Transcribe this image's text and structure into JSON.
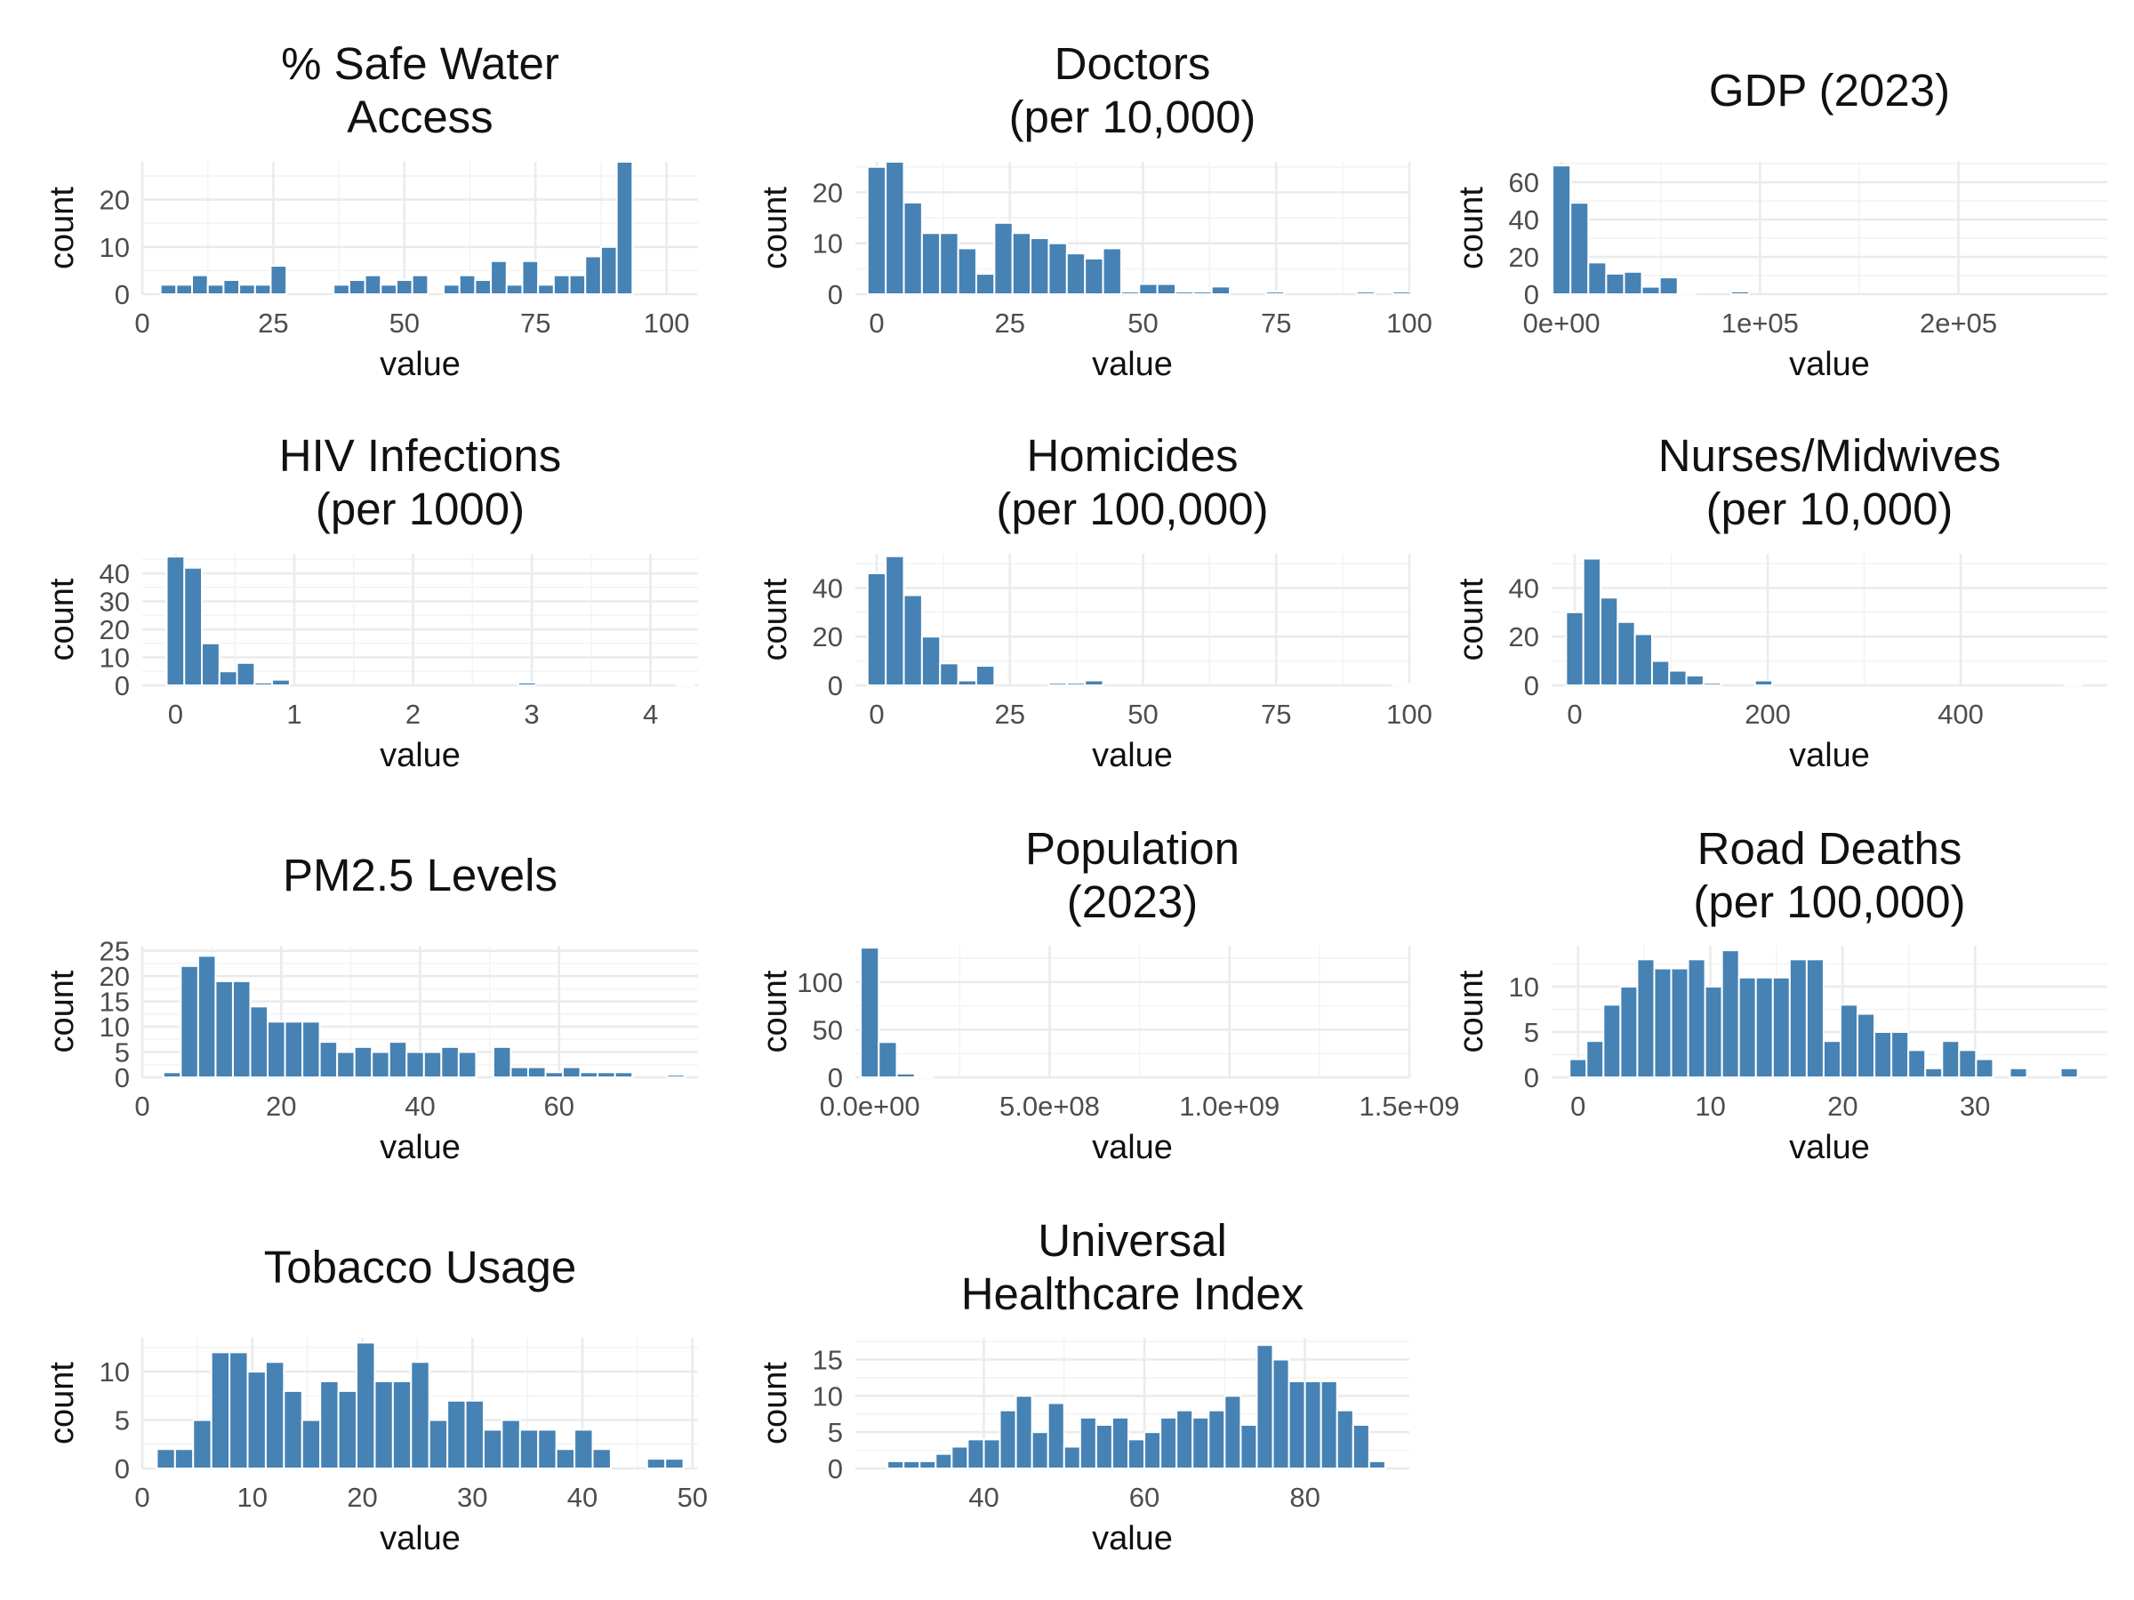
{
  "style": {
    "bar_color": "#4682b4",
    "grid_color": "#ebebeb",
    "background": "#ffffff"
  },
  "chart_data": [
    {
      "type": "bar",
      "title": "% Safe Water\nAccess",
      "xlabel": "value",
      "ylabel": "count",
      "x": [
        2,
        5,
        8,
        11,
        14,
        17,
        20,
        23,
        26,
        29,
        32,
        35,
        38,
        41,
        44,
        47,
        50,
        53,
        56,
        59,
        62,
        65,
        68,
        71,
        74,
        77,
        80,
        83,
        86,
        89,
        92,
        95,
        98,
        101
      ],
      "values": [
        0,
        2,
        2,
        4,
        2,
        3,
        2,
        2,
        6,
        0,
        0,
        0,
        2,
        3,
        4,
        2,
        3,
        4,
        0,
        2,
        4,
        3,
        7,
        2,
        7,
        2,
        4,
        4,
        8,
        10,
        28,
        0,
        0,
        0
      ],
      "xlim": [
        0,
        106
      ],
      "xticks": [
        0,
        25,
        50,
        75,
        100
      ],
      "xtick_labels": [
        "0",
        "25",
        "50",
        "75",
        "100"
      ],
      "ylim": [
        0,
        28
      ],
      "yticks": [
        0,
        10,
        20
      ],
      "ytick_labels": [
        "0",
        "10",
        "20"
      ]
    },
    {
      "type": "bar",
      "title": "Doctors\n(per 10,000)",
      "xlabel": "value",
      "ylabel": "count",
      "x": [
        0,
        3.4,
        6.8,
        10.2,
        13.6,
        17,
        20.4,
        23.8,
        27.2,
        30.6,
        34,
        37.4,
        40.8,
        44.2,
        47.6,
        51,
        54.4,
        57.8,
        61.2,
        64.6,
        68,
        71.4,
        74.8,
        78.2,
        81.6,
        85,
        88.4,
        91.8,
        95.2,
        98.6
      ],
      "values": [
        25,
        26,
        18,
        12,
        12,
        9,
        4,
        14,
        12,
        11,
        10,
        8,
        7,
        9,
        0.5,
        2,
        2,
        0.5,
        0.5,
        1.5,
        0,
        0,
        0.5,
        0,
        0,
        0,
        0,
        0.5,
        0,
        0.5
      ],
      "xlim": [
        -4,
        100
      ],
      "xticks": [
        0,
        25,
        50,
        75,
        100
      ],
      "xtick_labels": [
        "0",
        "25",
        "50",
        "75",
        "100"
      ],
      "ylim": [
        0,
        26
      ],
      "yticks": [
        0,
        10,
        20
      ],
      "ytick_labels": [
        "0",
        "10",
        "20"
      ]
    },
    {
      "type": "bar",
      "title": "GDP (2023)",
      "xlabel": "value",
      "ylabel": "count",
      "x": [
        0,
        9000,
        18000,
        27000,
        36000,
        45000,
        54000,
        63000,
        72000,
        81000,
        90000,
        99000,
        108000,
        117000,
        126000
      ],
      "values": [
        69,
        49,
        17,
        11,
        12,
        4,
        9,
        0.5,
        0,
        0,
        1.5,
        0,
        0,
        0,
        0
      ],
      "xlim": [
        -5000,
        275000
      ],
      "xticks": [
        0,
        100000,
        200000
      ],
      "xtick_labels": [
        "0e+00",
        "1e+05",
        "2e+05"
      ],
      "ylim": [
        0,
        71
      ],
      "yticks": [
        0,
        20,
        40,
        60
      ],
      "ytick_labels": [
        "0",
        "20",
        "40",
        "60"
      ]
    },
    {
      "type": "bar",
      "title": "HIV Infections\n(per 1000)",
      "xlabel": "value",
      "ylabel": "count",
      "x": [
        0,
        0.148,
        0.296,
        0.444,
        0.592,
        0.74,
        0.888,
        1.036,
        1.184,
        1.332,
        1.48,
        1.628,
        1.776,
        1.924,
        2.072,
        2.22,
        2.368,
        2.516,
        2.664,
        2.812,
        2.96,
        3.108,
        3.256,
        3.404,
        3.552,
        3.7,
        3.848,
        3.996,
        4.144,
        4.292
      ],
      "values": [
        46,
        42,
        15,
        5,
        8,
        1,
        2,
        0,
        0,
        0,
        0,
        0,
        0,
        0,
        0,
        0,
        0,
        0,
        0,
        0,
        1,
        0,
        0,
        0,
        0,
        0,
        0,
        0,
        0,
        0.5
      ],
      "xlim": [
        -0.28,
        4.4
      ],
      "xticks": [
        0,
        1,
        2,
        3,
        4
      ],
      "xtick_labels": [
        "0",
        "1",
        "2",
        "3",
        "4"
      ],
      "ylim": [
        0,
        47
      ],
      "yticks": [
        0,
        10,
        20,
        30,
        40
      ],
      "ytick_labels": [
        "0",
        "10",
        "20",
        "30",
        "40"
      ]
    },
    {
      "type": "bar",
      "title": "Homicides\n(per 100,000)",
      "xlabel": "value",
      "ylabel": "count",
      "x": [
        0,
        3.4,
        6.8,
        10.2,
        13.6,
        17,
        20.4,
        23.8,
        27.2,
        30.6,
        34,
        37.4,
        40.8,
        44.2,
        47.6,
        51,
        54.4,
        57.8,
        61.2,
        64.6,
        68,
        71.4,
        74.8,
        78.2,
        81.6,
        85,
        88.4,
        91.8,
        95.2,
        98.6
      ],
      "values": [
        46,
        53,
        37,
        20,
        9,
        2,
        8,
        0,
        0,
        0,
        1,
        1,
        2,
        0,
        0,
        0,
        0,
        0,
        0,
        0,
        0,
        0,
        0,
        0,
        0,
        0,
        0,
        0,
        0,
        0.5
      ],
      "xlim": [
        -4,
        100
      ],
      "xticks": [
        0,
        25,
        50,
        75,
        100
      ],
      "xtick_labels": [
        "0",
        "25",
        "50",
        "75",
        "100"
      ],
      "ylim": [
        0,
        54
      ],
      "yticks": [
        0,
        20,
        40
      ],
      "ytick_labels": [
        "0",
        "20",
        "40"
      ]
    },
    {
      "type": "bar",
      "title": "Nurses/Midwives\n(per 10,000)",
      "xlabel": "value",
      "ylabel": "count",
      "x": [
        0,
        17.8,
        35.6,
        53.4,
        71.2,
        89,
        106.8,
        124.6,
        142.4,
        160.2,
        178,
        195.8,
        213.6,
        231.4,
        249.2,
        267,
        284.8,
        302.6,
        320.4,
        338.2,
        356,
        373.8,
        391.6,
        409.4,
        427.2,
        445,
        462.8,
        480.6,
        498.4,
        516.2
      ],
      "values": [
        30,
        52,
        36,
        26,
        21,
        10,
        6,
        4,
        1,
        0,
        0,
        2,
        0,
        0,
        0,
        0,
        0,
        0,
        0,
        0,
        0,
        0,
        0,
        0,
        0,
        0,
        0,
        0,
        0,
        0.5
      ],
      "xlim": [
        -24,
        552
      ],
      "xticks": [
        0,
        200,
        400
      ],
      "xtick_labels": [
        "0",
        "200",
        "400"
      ],
      "ylim": [
        0,
        54
      ],
      "yticks": [
        0,
        20,
        40
      ],
      "ytick_labels": [
        "0",
        "20",
        "40"
      ]
    },
    {
      "type": "bar",
      "title": "PM2.5 Levels",
      "xlabel": "value",
      "ylabel": "count",
      "x": [
        4.3,
        6.8,
        9.3,
        11.8,
        14.3,
        16.8,
        19.3,
        21.8,
        24.3,
        26.8,
        29.3,
        31.8,
        34.3,
        36.8,
        39.3,
        41.8,
        44.3,
        46.8,
        49.3,
        51.8,
        54.3,
        56.8,
        59.3,
        61.8,
        64.3,
        66.8,
        69.3,
        71.8,
        74.3,
        76.8
      ],
      "values": [
        1,
        22,
        24,
        19,
        19,
        14,
        11,
        11,
        11,
        7,
        5,
        6,
        5,
        7,
        5,
        5,
        6,
        5,
        0,
        6,
        2,
        2,
        1,
        2,
        1,
        1,
        1,
        0,
        0,
        0.5
      ],
      "xlim": [
        0,
        80
      ],
      "xticks": [
        0,
        20,
        40,
        60
      ],
      "xtick_labels": [
        "0",
        "20",
        "40",
        "60"
      ],
      "ylim": [
        0,
        26
      ],
      "yticks": [
        0,
        5,
        10,
        15,
        20,
        25
      ],
      "ytick_labels": [
        "0",
        "5",
        "10",
        "15",
        "20",
        "25"
      ]
    },
    {
      "type": "bar",
      "title": "Population\n(2023)",
      "xlabel": "value",
      "ylabel": "count",
      "x": [
        0,
        50000000,
        100000000,
        150000000,
        200000000
      ],
      "values": [
        136,
        37,
        4,
        1,
        0
      ],
      "xlim": [
        -40000000,
        1500000000
      ],
      "xticks": [
        0,
        500000000,
        1000000000,
        1500000000
      ],
      "xtick_labels": [
        "0.0e+00",
        "5.0e+08",
        "1.0e+09",
        "1.5e+09"
      ],
      "ylim": [
        0,
        138
      ],
      "yticks": [
        0,
        50,
        100
      ],
      "ytick_labels": [
        "0",
        "50",
        "100"
      ]
    },
    {
      "type": "bar",
      "title": "Road Deaths\n(per 100,000)",
      "xlabel": "value",
      "ylabel": "count",
      "x": [
        0,
        1.28,
        2.56,
        3.84,
        5.12,
        6.4,
        7.68,
        8.96,
        10.24,
        11.52,
        12.8,
        14.08,
        15.36,
        16.64,
        17.92,
        19.2,
        20.48,
        21.76,
        23.04,
        24.32,
        25.6,
        26.88,
        28.16,
        29.44,
        30.72,
        32,
        33.28,
        34.56,
        35.84,
        37.12
      ],
      "values": [
        2,
        4,
        8,
        10,
        13,
        12,
        12,
        13,
        10,
        14,
        11,
        11,
        11,
        13,
        13,
        4,
        8,
        7,
        5,
        5,
        3,
        1,
        4,
        3,
        2,
        0,
        1,
        0,
        0,
        1
      ],
      "xlim": [
        -2,
        40
      ],
      "xticks": [
        0,
        10,
        20,
        30
      ],
      "xtick_labels": [
        "0",
        "10",
        "20",
        "30"
      ],
      "ylim": [
        0,
        14.5
      ],
      "yticks": [
        0,
        5,
        10
      ],
      "ytick_labels": [
        "0",
        "5",
        "10"
      ]
    },
    {
      "type": "bar",
      "title": "Tobacco Usage",
      "xlabel": "value",
      "ylabel": "count",
      "x": [
        0.5,
        2.15,
        3.8,
        5.45,
        7.1,
        8.75,
        10.4,
        12.05,
        13.7,
        15.35,
        17,
        18.65,
        20.3,
        21.95,
        23.6,
        25.25,
        26.9,
        28.55,
        30.2,
        31.85,
        33.5,
        35.15,
        36.8,
        38.45,
        40.1,
        41.75,
        43.4,
        45.05,
        46.7,
        48.35
      ],
      "values": [
        0,
        2,
        2,
        5,
        12,
        12,
        10,
        11,
        8,
        5,
        9,
        8,
        13,
        9,
        9,
        11,
        5,
        7,
        7,
        4,
        5,
        4,
        4,
        2,
        4,
        2,
        0,
        0,
        1,
        1
      ],
      "xlim": [
        0,
        50.5
      ],
      "xticks": [
        0,
        10,
        20,
        30,
        40,
        50
      ],
      "xtick_labels": [
        "0",
        "10",
        "20",
        "30",
        "40",
        "50"
      ],
      "ylim": [
        0,
        13.5
      ],
      "yticks": [
        0,
        5,
        10
      ],
      "ytick_labels": [
        "0",
        "5",
        "10"
      ]
    },
    {
      "type": "bar",
      "title": "Universal\nHealthcare Index",
      "xlabel": "value",
      "ylabel": "count",
      "x": [
        27,
        29,
        31,
        33,
        35,
        37,
        39,
        41,
        43,
        45,
        47,
        49,
        51,
        53,
        55,
        57,
        59,
        61,
        63,
        65,
        67,
        69,
        71,
        73,
        75,
        77,
        79,
        81,
        83,
        85,
        87,
        89,
        91
      ],
      "values": [
        0,
        1,
        1,
        1,
        2,
        3,
        4,
        4,
        8,
        10,
        5,
        9,
        3,
        7,
        6,
        7,
        4,
        5,
        7,
        8,
        7,
        8,
        10,
        6,
        17,
        15,
        12,
        12,
        12,
        8,
        6,
        1,
        0
      ],
      "xlim": [
        24,
        93
      ],
      "xticks": [
        40,
        60,
        80
      ],
      "xtick_labels": [
        "40",
        "60",
        "80"
      ],
      "ylim": [
        0,
        18
      ],
      "yticks": [
        0,
        5,
        10,
        15
      ],
      "ytick_labels": [
        "0",
        "5",
        "10",
        "15"
      ]
    }
  ]
}
